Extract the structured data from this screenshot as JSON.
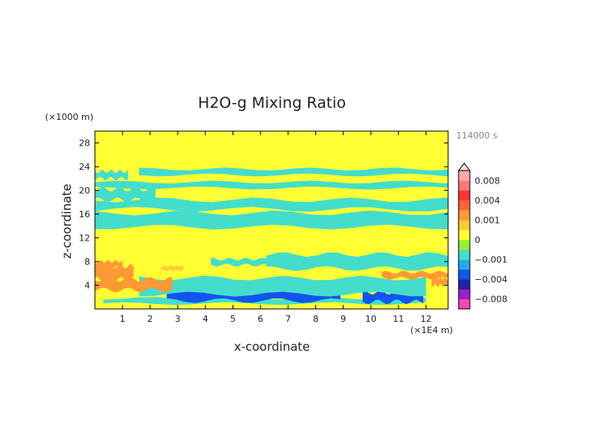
{
  "chart_data": {
    "type": "heatmap",
    "title": "H2O-g Mixing Ratio",
    "xlabel": "x-coordinate",
    "ylabel": "z-coordinate",
    "x_unit_label": "(×1E4 m)",
    "y_unit_label": "(×1000 m)",
    "time_label": "114000 s",
    "xlim": [
      0,
      12.8
    ],
    "ylim": [
      0,
      30
    ],
    "x_ticks": [
      1,
      2,
      3,
      4,
      5,
      6,
      7,
      8,
      9,
      10,
      11,
      12
    ],
    "y_ticks": [
      4,
      8,
      12,
      16,
      20,
      24,
      28
    ],
    "colorbar": {
      "labels": [
        "0.008",
        "0.004",
        "0.001",
        "0",
        "−0.001",
        "−0.004",
        "−0.008"
      ],
      "label_values": [
        0.008,
        0.004,
        0.001,
        0,
        -0.001,
        -0.004,
        -0.008
      ],
      "levels": [
        -0.01,
        -0.008,
        -0.006,
        -0.004,
        -0.002,
        -0.001,
        -0.0005,
        0,
        0.0005,
        0.001,
        0.002,
        0.004,
        0.006,
        0.008,
        0.01
      ],
      "colors": [
        "#ff44bb",
        "#9922cc",
        "#2222aa",
        "#1155ee",
        "#22aaee",
        "#44ddcc",
        "#99ee33",
        "#ffff33",
        "#ffcc33",
        "#ff9933",
        "#ff6633",
        "#ff3333",
        "#ff7777",
        "#ffaaaa"
      ],
      "over_color": "#ffdddd"
    },
    "bands": [
      {
        "z": [
          0,
          0.9
        ],
        "value": 0.0002
      },
      {
        "z": [
          0.9,
          1.8
        ],
        "value": -0.0009,
        "x_range": [
          0.3,
          12.0
        ]
      },
      {
        "z": [
          1.4,
          3.6
        ],
        "value": -0.0025,
        "x_range": [
          2.6,
          8.9
        ]
      },
      {
        "z": [
          1.2,
          2.8
        ],
        "value": -0.0022,
        "x_range": [
          9.7,
          11.9
        ]
      },
      {
        "z": [
          2.5,
          5.2
        ],
        "value": -0.0008,
        "x_range": [
          1.6,
          12.0
        ]
      },
      {
        "z": [
          3.2,
          5.0
        ],
        "value": 0.0015,
        "x_range": [
          0,
          2.8
        ]
      },
      {
        "z": [
          5.0,
          7.2
        ],
        "value": 0.0012,
        "x_range": [
          0,
          1.4
        ]
      },
      {
        "z": [
          5.2,
          6.2
        ],
        "value": 0.0015,
        "x_range": [
          10.4,
          12.8
        ]
      },
      {
        "z": [
          4.0,
          5.2
        ],
        "value": 0.0011,
        "x_range": [
          12.2,
          12.8
        ]
      },
      {
        "z": [
          7.0,
          8.0
        ],
        "value": 0.0016,
        "x_range": [
          0,
          1.0
        ]
      },
      {
        "z": [
          6.5,
          7.2
        ],
        "value": 0.0008,
        "x_range": [
          2.4,
          3.2
        ]
      },
      {
        "z": [
          6.8,
          9.2
        ],
        "value": -0.0008,
        "x_range": [
          6.2,
          12.8
        ]
      },
      {
        "z": [
          7.4,
          8.4
        ],
        "value": -0.0008,
        "x_range": [
          4.2,
          6.4
        ]
      },
      {
        "z": [
          13.8,
          16.2
        ],
        "value": -0.0008,
        "x_range": [
          0,
          12.8
        ]
      },
      {
        "z": [
          16.8,
          18.4
        ],
        "value": -0.0008,
        "x_range": [
          0,
          12.8
        ]
      },
      {
        "z": [
          18.4,
          20.2
        ],
        "value": -0.0007,
        "x_range": [
          0,
          2.2
        ]
      },
      {
        "z": [
          20.4,
          21.4
        ],
        "value": -0.0008,
        "x_range": [
          0,
          12.8
        ]
      },
      {
        "z": [
          22.6,
          23.6
        ],
        "value": -0.0008,
        "x_range": [
          1.6,
          12.8
        ]
      },
      {
        "z": [
          22.0,
          23.2
        ],
        "value": -0.0007,
        "x_range": [
          0,
          1.2
        ]
      }
    ]
  }
}
